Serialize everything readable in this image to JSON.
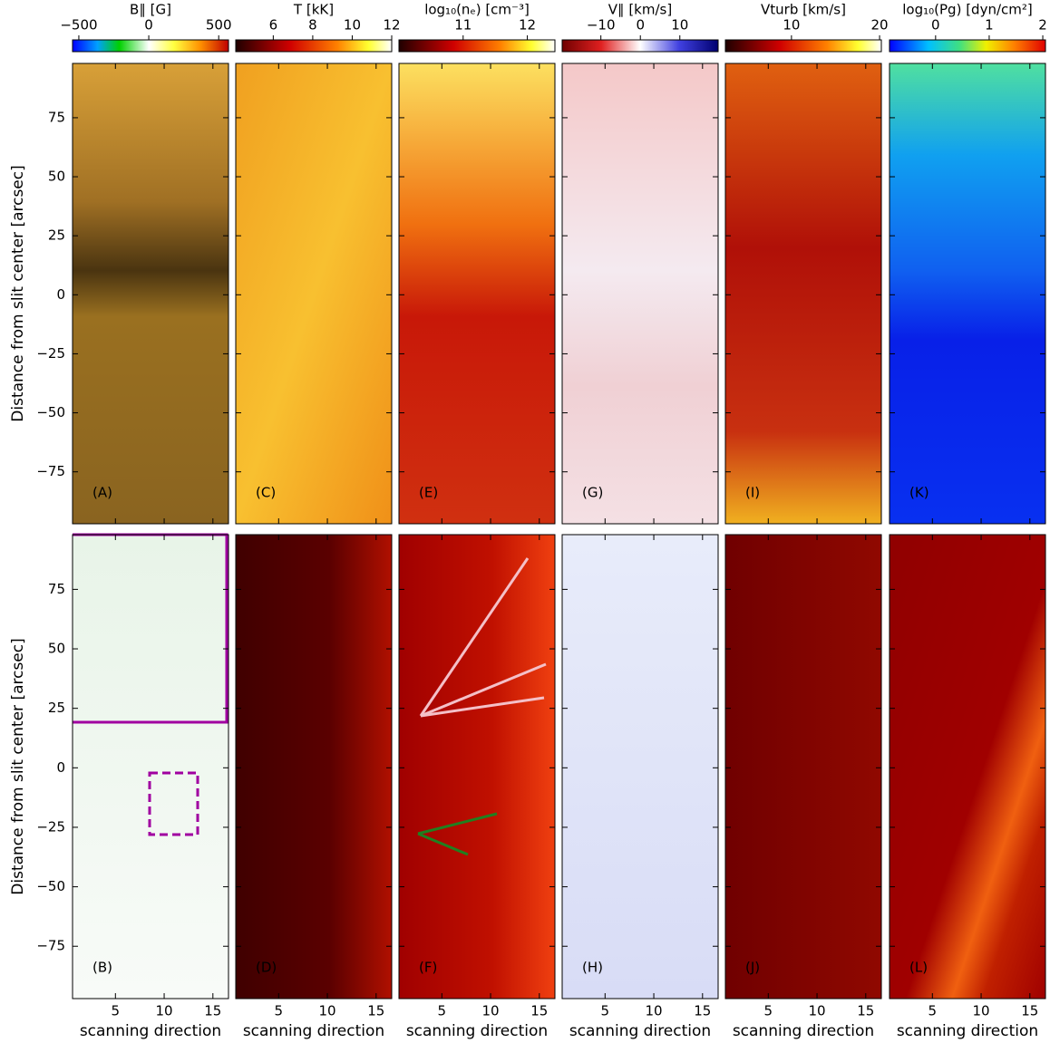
{
  "chart_data": {
    "type": "heatmap-grid",
    "x_axis": {
      "label": "scanning direction",
      "lim": [
        0.6,
        16.6
      ],
      "ticks": [
        5,
        10,
        15
      ]
    },
    "y_axis": {
      "label": "Distance from slit center [arcsec]",
      "lim": [
        -97,
        98
      ],
      "ticks": [
        {
          "value": -75,
          "label": "−75"
        },
        {
          "value": -50,
          "label": "−50"
        },
        {
          "value": -25,
          "label": "−25"
        },
        0,
        25,
        50,
        75
      ]
    },
    "colorbars": [
      {
        "title": "B∥   [G]",
        "lim": [
          -545,
          570
        ],
        "ticks": [
          {
            "value": -500,
            "label": "−500"
          },
          0,
          500
        ]
      },
      {
        "title": "T   [kK]",
        "lim": [
          4.1,
          12
        ],
        "ticks": [
          6,
          8,
          10,
          12
        ]
      },
      {
        "title": "log₁₀(nₑ)   [cm⁻³]",
        "lim": [
          10,
          12.43
        ],
        "ticks": [
          11,
          12
        ]
      },
      {
        "title": "V∥   [km/s]",
        "lim": [
          -19.8,
          19.7
        ],
        "ticks": [
          {
            "value": -10,
            "label": "−10"
          },
          0,
          10
        ]
      },
      {
        "title": "Vturb   [km/s]",
        "lim": [
          2.5,
          20.2
        ],
        "ticks": [
          10,
          20
        ]
      },
      {
        "title": "log₁₀(Pg)   [dyn/cm²]",
        "lim": [
          -0.86,
          2.05
        ],
        "ticks": [
          0,
          1,
          2
        ]
      }
    ],
    "panels": [
      {
        "label": "(A)"
      },
      {
        "label": "(C)"
      },
      {
        "label": "(E)"
      },
      {
        "label": "(G)"
      },
      {
        "label": "(I)"
      },
      {
        "label": "(K)"
      },
      {
        "label": "(B)"
      },
      {
        "label": "(D)"
      },
      {
        "label": "(F)"
      },
      {
        "label": "(H)"
      },
      {
        "label": "(J)"
      },
      {
        "label": "(L)"
      }
    ]
  }
}
